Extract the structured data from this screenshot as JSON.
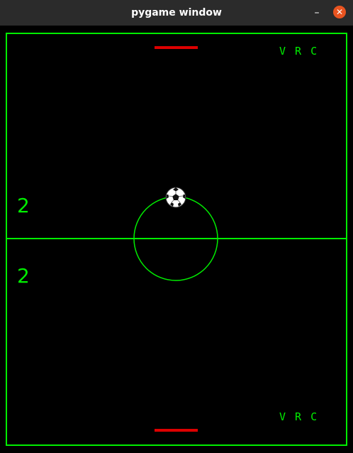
{
  "window": {
    "title": "pygame window",
    "minimize_glyph": "–",
    "close_glyph": "✕"
  },
  "game": {
    "top_label": "V R C",
    "bottom_label": "V R C",
    "score_top": "2",
    "score_bottom": "2"
  },
  "colors": {
    "field_lines": "#00ee00",
    "paddle": "#dd0000",
    "background": "#000000",
    "close_button": "#e95420"
  },
  "icons": {
    "ball": "soccer-ball-icon"
  }
}
